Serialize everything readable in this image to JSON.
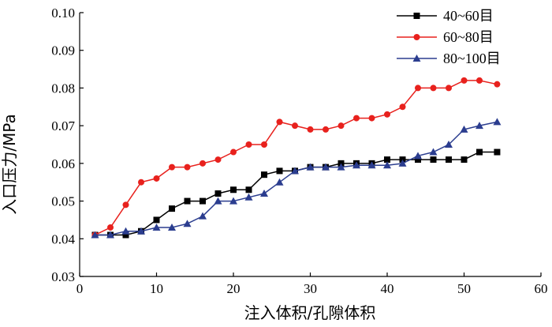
{
  "chart_data": {
    "type": "line",
    "xlabel": "注入体积/孔隙体积",
    "ylabel": "入口压力/MPa",
    "xlim": [
      0,
      60
    ],
    "ylim": [
      0.03,
      0.1
    ],
    "xticks": [
      0,
      10,
      20,
      30,
      40,
      50,
      60
    ],
    "yticks": [
      0.03,
      0.04,
      0.05,
      0.06,
      0.07,
      0.08,
      0.09,
      0.1
    ],
    "xtick_labels": [
      "0",
      "10",
      "20",
      "30",
      "40",
      "50",
      "60"
    ],
    "ytick_labels": [
      "0.03",
      "0.04",
      "0.05",
      "0.06",
      "0.07",
      "0.08",
      "0.09",
      "0.10"
    ],
    "grid": false,
    "legend_position": "top-right",
    "series": [
      {
        "name": "40~60目",
        "color": "#000000",
        "marker": "square",
        "points": [
          [
            2,
            0.041
          ],
          [
            4,
            0.041
          ],
          [
            6,
            0.041
          ],
          [
            8,
            0.042
          ],
          [
            10,
            0.045
          ],
          [
            12,
            0.048
          ],
          [
            14,
            0.05
          ],
          [
            16,
            0.05
          ],
          [
            18,
            0.052
          ],
          [
            20,
            0.053
          ],
          [
            22,
            0.053
          ],
          [
            24,
            0.057
          ],
          [
            26,
            0.058
          ],
          [
            28,
            0.058
          ],
          [
            30,
            0.059
          ],
          [
            32,
            0.059
          ],
          [
            34,
            0.06
          ],
          [
            36,
            0.06
          ],
          [
            38,
            0.06
          ],
          [
            40,
            0.061
          ],
          [
            42,
            0.061
          ],
          [
            44,
            0.061
          ],
          [
            46,
            0.061
          ],
          [
            48,
            0.061
          ],
          [
            50,
            0.061
          ],
          [
            52,
            0.063
          ],
          [
            54.3,
            0.063
          ]
        ]
      },
      {
        "name": "60~80目",
        "color": "#e8211d",
        "marker": "circle",
        "points": [
          [
            2,
            0.041
          ],
          [
            4,
            0.043
          ],
          [
            6,
            0.049
          ],
          [
            8,
            0.055
          ],
          [
            10,
            0.056
          ],
          [
            12,
            0.059
          ],
          [
            14,
            0.059
          ],
          [
            16,
            0.06
          ],
          [
            18,
            0.061
          ],
          [
            20,
            0.063
          ],
          [
            22,
            0.065
          ],
          [
            24,
            0.065
          ],
          [
            26,
            0.071
          ],
          [
            28,
            0.07
          ],
          [
            30,
            0.069
          ],
          [
            32,
            0.069
          ],
          [
            34,
            0.07
          ],
          [
            36,
            0.072
          ],
          [
            38,
            0.072
          ],
          [
            40,
            0.073
          ],
          [
            42,
            0.075
          ],
          [
            44,
            0.08
          ],
          [
            46,
            0.08
          ],
          [
            48,
            0.08
          ],
          [
            50,
            0.082
          ],
          [
            52,
            0.082
          ],
          [
            54.3,
            0.081
          ]
        ]
      },
      {
        "name": "80~100目",
        "color": "#2b3d8f",
        "marker": "triangle",
        "points": [
          [
            2,
            0.041
          ],
          [
            4,
            0.041
          ],
          [
            6,
            0.042
          ],
          [
            8,
            0.042
          ],
          [
            10,
            0.043
          ],
          [
            12,
            0.043
          ],
          [
            14,
            0.044
          ],
          [
            16,
            0.046
          ],
          [
            18,
            0.05
          ],
          [
            20,
            0.05
          ],
          [
            22,
            0.051
          ],
          [
            24,
            0.052
          ],
          [
            26,
            0.055
          ],
          [
            28,
            0.058
          ],
          [
            30,
            0.059
          ],
          [
            32,
            0.059
          ],
          [
            34,
            0.059
          ],
          [
            36,
            0.0595
          ],
          [
            38,
            0.0595
          ],
          [
            40,
            0.0595
          ],
          [
            42,
            0.06
          ],
          [
            44,
            0.062
          ],
          [
            46,
            0.063
          ],
          [
            48,
            0.065
          ],
          [
            50,
            0.069
          ],
          [
            52,
            0.07
          ],
          [
            54.3,
            0.071
          ]
        ]
      }
    ]
  }
}
